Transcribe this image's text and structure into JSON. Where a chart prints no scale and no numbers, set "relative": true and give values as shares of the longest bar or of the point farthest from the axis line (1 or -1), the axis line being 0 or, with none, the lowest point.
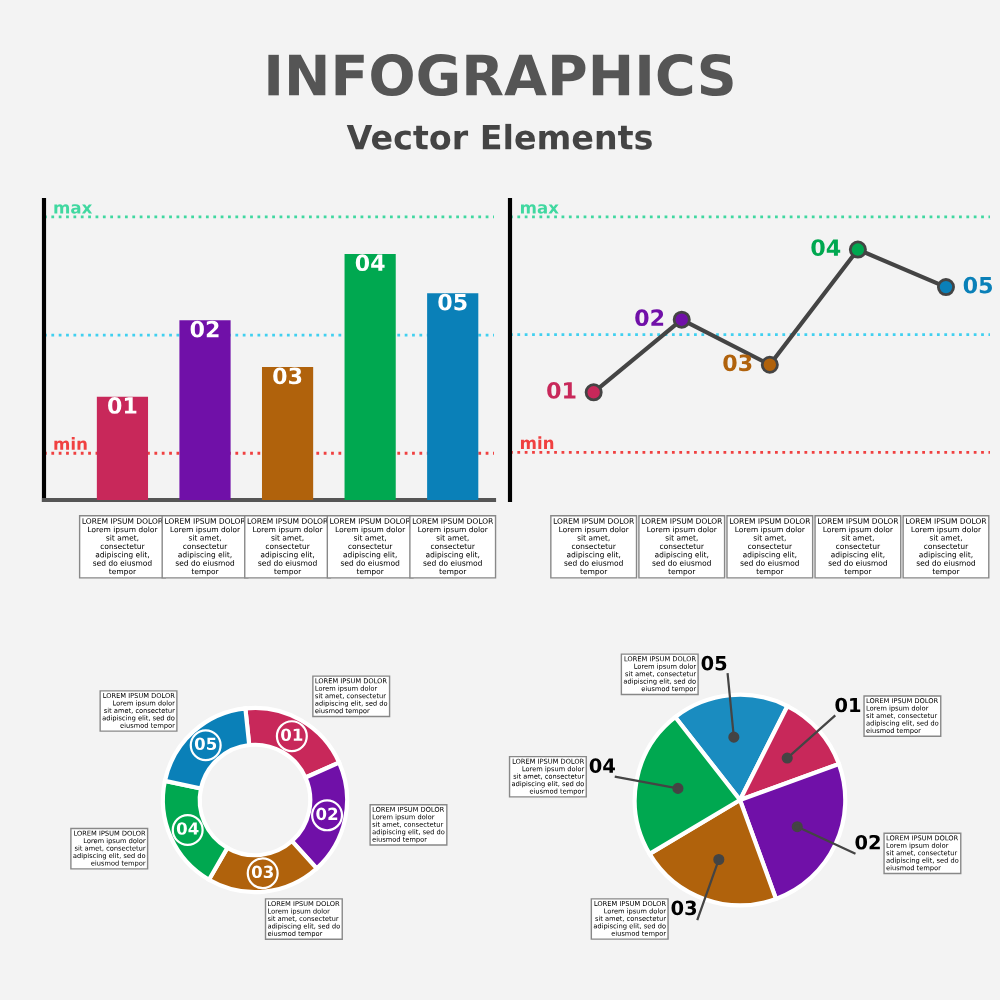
{
  "chart_data": [
    {
      "type": "bar",
      "title": "INFOGRAPHICS",
      "subtitle": "Vector Elements",
      "relative": true,
      "categories": [
        null,
        null,
        null,
        null,
        null
      ],
      "values": [
        0.42,
        0.73,
        0.54,
        1,
        0.84
      ],
      "colors": [
        "#c8285a",
        "#7010a8",
        "#b0620c",
        "#00a850",
        "#0a80b8"
      ],
      "ref_lines": [
        {
          "axis": "y",
          "value": 1.15,
          "label": "max",
          "color": "#40d8a0",
          "line_style": "dotted"
        },
        {
          "axis": "y",
          "value": 0.67,
          "label": null,
          "color": "#40d0f0",
          "line_style": "dotted"
        },
        {
          "axis": "y",
          "value": 0.19,
          "label": "min",
          "color": "#f04040",
          "line_style": "dotted"
        }
      ],
      "annotations": [
        "01",
        "02",
        "03",
        "04",
        "05",
        "LOREM IPSUM DOLOR\nLorem ipsum dolor\nsit amet,\nconsectetur\nadipiscing elit,\nsed do eiusmod\ntempor",
        "LOREM IPSUM DOLOR\nLorem ipsum dolor\nsit amet,\nconsectetur\nadipiscing elit,\nsed do eiusmod\ntempor",
        "LOREM IPSUM DOLOR\nLorem ipsum dolor\nsit amet,\nconsectetur\nadipiscing elit,\nsed do eiusmod\ntempor",
        "LOREM IPSUM DOLOR\nLorem ipsum dolor\nsit amet,\nconsectetur\nadipiscing elit,\nsed do eiusmod\ntempor",
        "LOREM IPSUM DOLOR\nLorem ipsum dolor\nsit amet,\nconsectetur\nadipiscing elit,\nsed do eiusmod\ntempor"
      ]
    },
    {
      "type": "line",
      "relative": true,
      "categories": [
        null,
        null,
        null,
        null,
        null
      ],
      "values": [
        0.43,
        0.72,
        0.54,
        1,
        0.85
      ],
      "color": "#444444",
      "marker": "circle",
      "line_style": "solid",
      "colors": [
        "#c8285a",
        "#7010a8",
        "#b0620c",
        "#00a850",
        "#0a80b8"
      ],
      "ref_lines": [
        {
          "axis": "y",
          "value": 1.13,
          "label": "max",
          "color": "#40d8a0",
          "line_style": "dotted"
        },
        {
          "axis": "y",
          "value": 0.66,
          "label": null,
          "color": "#40d0f0",
          "line_style": "dotted"
        },
        {
          "axis": "y",
          "value": 0.19,
          "label": "min",
          "color": "#f04040",
          "line_style": "dotted"
        }
      ],
      "annotations": [
        "01",
        "02",
        "03",
        "04",
        "05",
        "LOREM IPSUM DOLOR\nLorem ipsum dolor\nsit amet,\nconsectetur\nadipiscing elit,\nsed do eiusmod\ntempor",
        "LOREM IPSUM DOLOR\nLorem ipsum dolor\nsit amet,\nconsectetur\nadipiscing elit,\nsed do eiusmod\ntempor",
        "LOREM IPSUM DOLOR\nLorem ipsum dolor\nsit amet,\nconsectetur\nadipiscing elit,\nsed do eiusmod\ntempor",
        "LOREM IPSUM DOLOR\nLorem ipsum dolor\nsit amet,\nconsectetur\nadipiscing elit,\nsed do eiusmod\ntempor",
        "LOREM IPSUM DOLOR\nLorem ipsum dolor\nsit amet,\nconsectetur\nadipiscing elit,\nsed do eiusmod\ntempor"
      ]
    },
    {
      "type": "donut",
      "categories": [
        "01",
        "02",
        "03",
        "04",
        "05"
      ],
      "values": [
        20,
        20,
        20,
        20,
        20
      ],
      "colors": [
        "#c8285a",
        "#7010a8",
        "#b0620c",
        "#00a850",
        "#0a80b8"
      ],
      "annotations": [
        "LOREM IPSUM DOLOR\nLorem ipsum dolor\nsit amet, consectetur\nadipiscing elit, sed do\neiusmod tempor",
        "LOREM IPSUM DOLOR\nLorem ipsum dolor\nsit amet, consectetur\nadipiscing elit, sed do\neiusmod tempor",
        "LOREM IPSUM DOLOR\nLorem ipsum dolor\nsit amet, consectetur\nadipiscing elit, sed do\neiusmod tempor",
        "LOREM IPSUM DOLOR\nLorem ipsum dolor\nsit amet, consectetur\nadipiscing elit, sed do\neiusmod tempor",
        "LOREM IPSUM DOLOR\nLorem ipsum dolor\nsit amet, consectetur\nadipiscing elit, sed do\neiusmod tempor"
      ]
    },
    {
      "type": "pie",
      "categories": [
        "05",
        "01",
        "02",
        "03",
        "04"
      ],
      "values": [
        18,
        12,
        25,
        22,
        23
      ],
      "colors": [
        "#1a8cc0",
        "#c8285a",
        "#7010a8",
        "#b0620c",
        "#00a850"
      ],
      "annotations": [
        "LOREM IPSUM DOLOR\nLorem ipsum dolor\nsit amet, consectetur\nadipiscing elit, sed do\neiusmod tempor",
        "LOREM IPSUM DOLOR\nLorem ipsum dolor\nsit amet, consectetur\nadipiscing elit, sed do\neiusmod tempor",
        "LOREM IPSUM DOLOR\nLorem ipsum dolor\nsit amet, consectetur\nadipiscing elit, sed do\neiusmod tempor",
        "LOREM IPSUM DOLOR\nLorem ipsum dolor\nsit amet, consectetur\nadipiscing elit, sed do\neiusmod tempor",
        "LOREM IPSUM DOLOR\nLorem ipsum dolor\nsit amet, consectetur\nadipiscing elit, sed do\neiusmod tempor"
      ]
    }
  ]
}
